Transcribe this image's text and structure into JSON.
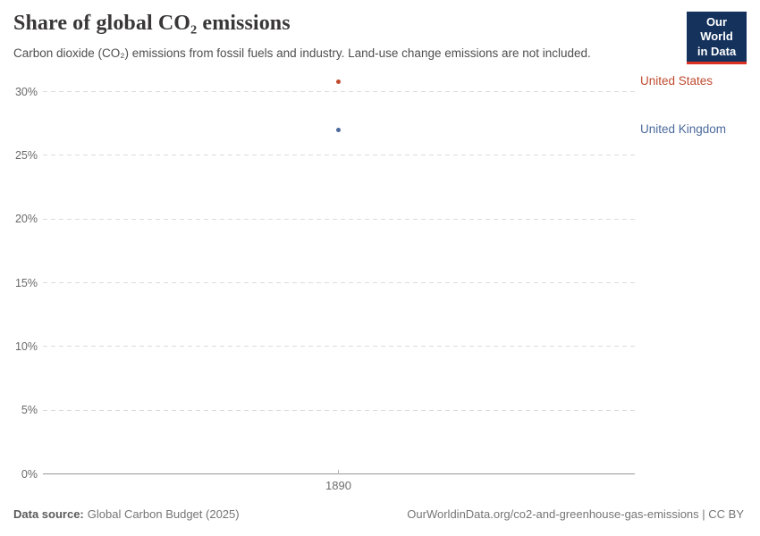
{
  "header": {
    "title": "Share of global CO₂ emissions",
    "subtitle": "Carbon dioxide (CO₂) emissions from fossil fuels and industry. Land-use change emissions are not included.",
    "logo": {
      "line1": "Our World",
      "line2": "in Data",
      "bg_color": "#14325c",
      "accent_color": "#dc3022"
    }
  },
  "chart_data": {
    "type": "scatter",
    "title": "Share of global CO₂ emissions",
    "x": [
      1890
    ],
    "series": [
      {
        "name": "United States",
        "color": "#bf4b2f",
        "values": [
          30.8
        ]
      },
      {
        "name": "United Kingdom",
        "color": "#4c6a9c",
        "values": [
          27.0
        ]
      }
    ],
    "xlabel": "",
    "ylabel": "",
    "ylim": [
      0,
      30
    ],
    "y_ticks": [
      0,
      5,
      10,
      15,
      20,
      25,
      30
    ],
    "y_tick_labels": [
      "0%",
      "5%",
      "10%",
      "15%",
      "20%",
      "25%",
      "30%"
    ],
    "x_ticks": [
      1890
    ],
    "x_tick_labels": [
      "1890"
    ],
    "grid": "horizontal-dashed",
    "legend_position": "right-entity-labels"
  },
  "footer": {
    "source_label": "Data source:",
    "source_value": "Global Carbon Budget (2025)",
    "right_text": "OurWorldinData.org/co2-and-greenhouse-gas-emissions | CC BY"
  }
}
